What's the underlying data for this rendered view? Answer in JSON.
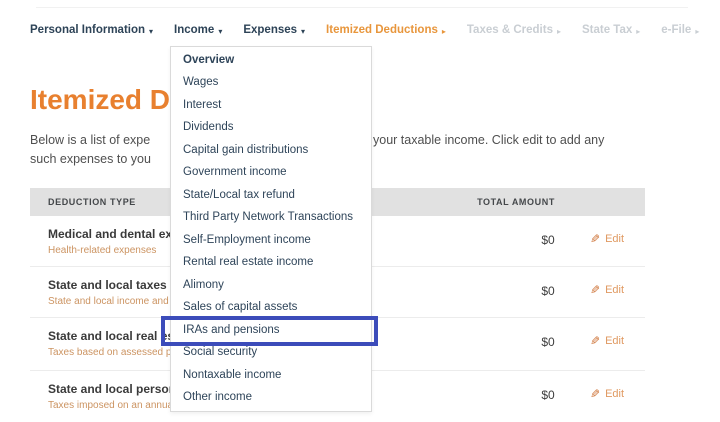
{
  "nav": {
    "items": [
      {
        "label": "Personal Information"
      },
      {
        "label": "Income"
      },
      {
        "label": "Expenses"
      },
      {
        "label": "Itemized Deductions"
      },
      {
        "label": "Taxes & Credits"
      },
      {
        "label": "State Tax"
      },
      {
        "label": "e-File"
      }
    ]
  },
  "icons": {
    "caret_down": "▾",
    "caret_right": "▸",
    "pencil": "✎"
  },
  "page": {
    "title_visible": "Itemized D",
    "intro_line1_left": "Below is a list of expe",
    "intro_line1_right": "your taxable income. Click edit to add any",
    "intro_line2": "such expenses to you"
  },
  "table": {
    "header_left": "DEDUCTION TYPE",
    "header_right": "TOTAL AMOUNT",
    "rows": [
      {
        "title": "Medical and dental exp",
        "subtitle": "Health-related expenses",
        "amount": "$0",
        "action": "Edit"
      },
      {
        "title": "State and local taxes",
        "subtitle": "State and local income and",
        "amount": "$0",
        "action": "Edit"
      },
      {
        "title": "State and local real es",
        "subtitle": "Taxes based on assessed pr",
        "amount": "$0",
        "action": "Edit"
      },
      {
        "title": "State and local person",
        "subtitle": "Taxes imposed on an annua",
        "amount": "$0",
        "action": "Edit"
      }
    ]
  },
  "dropdown": {
    "items": [
      {
        "label": "Overview"
      },
      {
        "label": "Wages"
      },
      {
        "label": "Interest"
      },
      {
        "label": "Dividends"
      },
      {
        "label": "Capital gain distributions"
      },
      {
        "label": "Government income"
      },
      {
        "label": "State/Local tax refund"
      },
      {
        "label": "Third Party Network Transactions"
      },
      {
        "label": "Self-Employment income"
      },
      {
        "label": "Rental real estate income"
      },
      {
        "label": "Alimony"
      },
      {
        "label": "Sales of capital assets"
      },
      {
        "label": "IRAs and pensions"
      },
      {
        "label": "Social security"
      },
      {
        "label": "Nontaxable income"
      },
      {
        "label": "Other income"
      }
    ],
    "highlighted_item": "IRAs and pensions"
  },
  "colors": {
    "accent_orange": "#e8802f",
    "nav_navy": "#2d4357",
    "nav_disabled": "#c9ced3",
    "subtitle_tan": "#cc9462",
    "edit_orange": "#e09a62",
    "highlight_border": "#3c4cba",
    "header_bg": "#e1e1e1"
  }
}
